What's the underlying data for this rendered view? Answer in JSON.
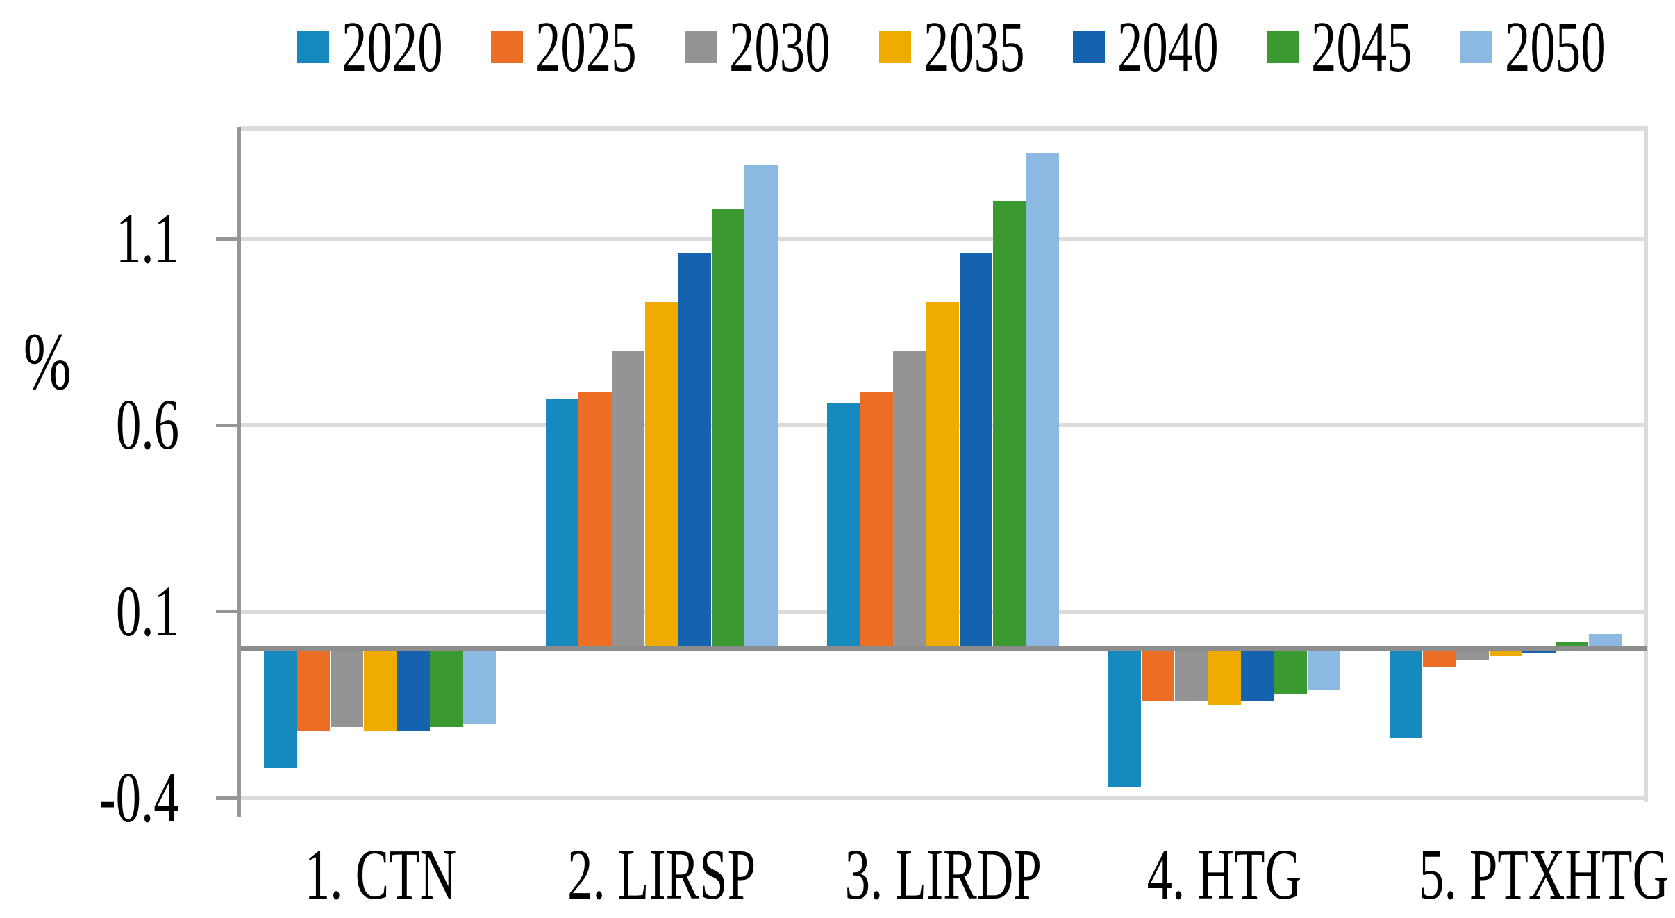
{
  "chart_data": {
    "type": "bar",
    "title": "",
    "xlabel": "",
    "ylabel": "%",
    "categories": [
      "1. CTN",
      "2. LIRSP",
      "3. LIRDP",
      "4. HTG",
      "5. PTXHTG"
    ],
    "series": [
      {
        "name": "2020",
        "color": "#1689BE",
        "values": [
          -0.32,
          0.67,
          0.66,
          -0.37,
          -0.24
        ]
      },
      {
        "name": "2025",
        "color": "#EC6E24",
        "values": [
          -0.22,
          0.69,
          0.69,
          -0.14,
          -0.05
        ]
      },
      {
        "name": "2030",
        "color": "#949494",
        "values": [
          -0.21,
          0.8,
          0.8,
          -0.14,
          -0.03
        ]
      },
      {
        "name": "2035",
        "color": "#F0AB00",
        "values": [
          -0.22,
          0.93,
          0.93,
          -0.15,
          -0.02
        ]
      },
      {
        "name": "2040",
        "color": "#1562AE",
        "values": [
          -0.22,
          1.06,
          1.06,
          -0.14,
          -0.01
        ]
      },
      {
        "name": "2045",
        "color": "#3A9A31",
        "values": [
          -0.21,
          1.18,
          1.2,
          -0.12,
          0.02
        ]
      },
      {
        "name": "2050",
        "color": "#8CB9E2",
        "values": [
          -0.2,
          1.3,
          1.33,
          -0.11,
          0.04
        ]
      }
    ],
    "yticks": [
      {
        "value": -0.4,
        "label": "-0.4"
      },
      {
        "value": 0.1,
        "label": "0.1"
      },
      {
        "value": 0.6,
        "label": "0.6"
      },
      {
        "value": 1.1,
        "label": "1.1"
      }
    ],
    "ylim": [
      -0.45,
      1.4
    ],
    "grid": true,
    "legend_position": "top"
  }
}
